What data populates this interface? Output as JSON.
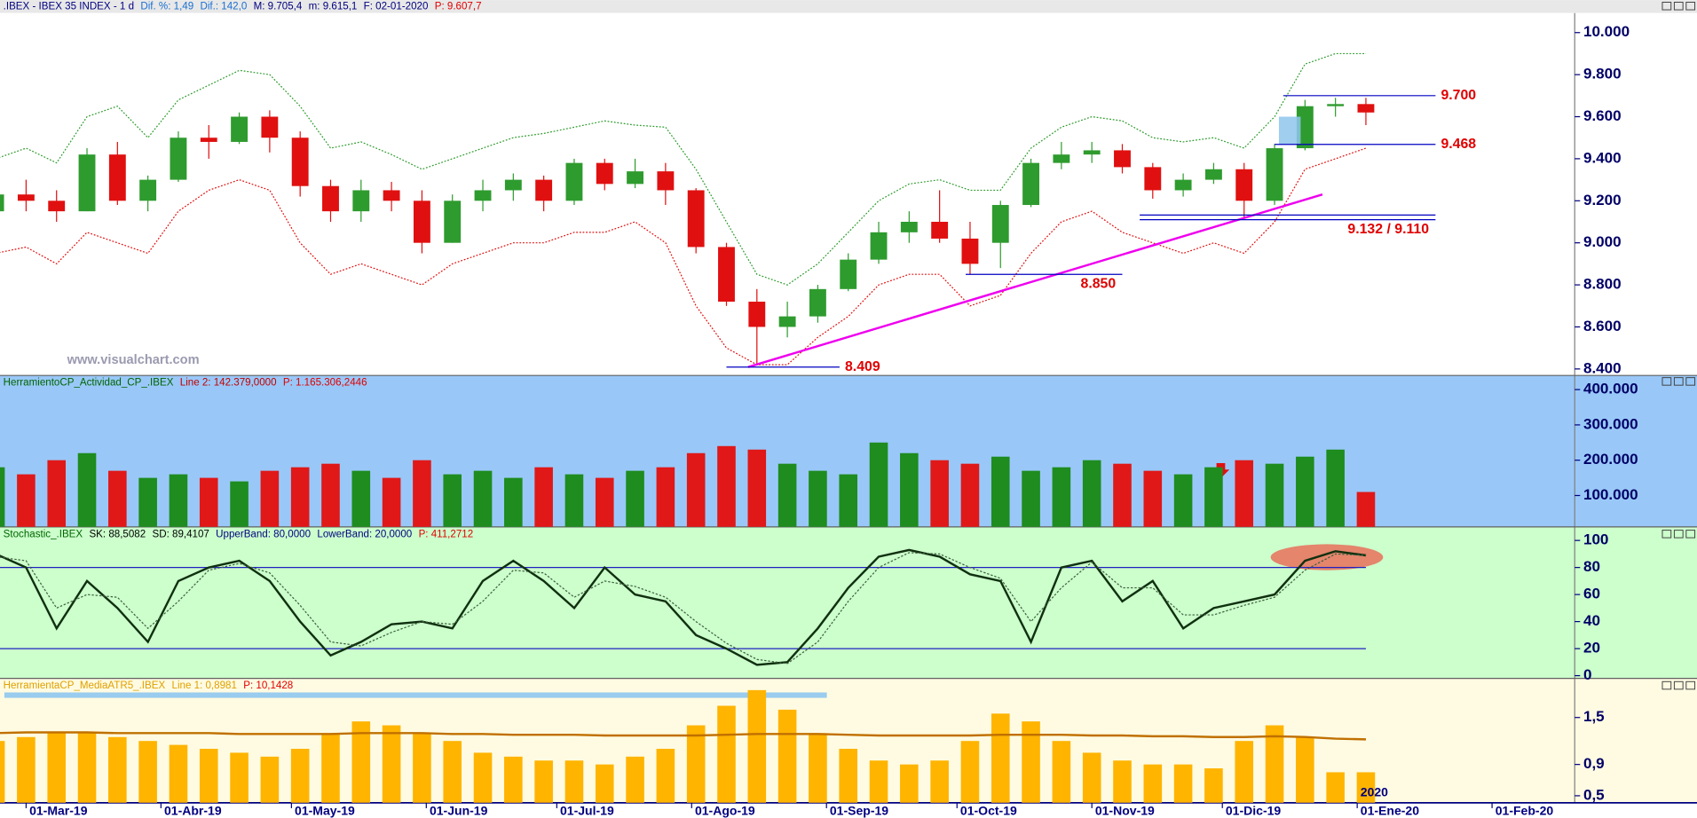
{
  "chart_data": [
    {
      "type": "candlestick",
      "header": [
        {
          "text": ".IBEX - IBEX 35 INDEX - 1 d",
          "color": "#000080"
        },
        {
          "text": "Dif. %: 1,49",
          "color": "#1a6fd0"
        },
        {
          "text": "Dif.: 142,0",
          "color": "#1a6fd0"
        },
        {
          "text": "M: 9.705,4",
          "color": "#000080"
        },
        {
          "text": "m: 9.615,1",
          "color": "#000080"
        },
        {
          "text": "F: 02-01-2020",
          "color": "#000080"
        },
        {
          "text": "P: 9.607,7",
          "color": "#e00000"
        }
      ],
      "watermark": "www.visualchart.com",
      "x": [
        "2019-02-22",
        "2019-03-01",
        "2019-03-08",
        "2019-03-15",
        "2019-03-22",
        "2019-03-29",
        "2019-04-05",
        "2019-04-12",
        "2019-04-19",
        "2019-04-26",
        "2019-05-03",
        "2019-05-10",
        "2019-05-17",
        "2019-05-24",
        "2019-05-31",
        "2019-06-07",
        "2019-06-14",
        "2019-06-21",
        "2019-06-28",
        "2019-07-05",
        "2019-07-12",
        "2019-07-19",
        "2019-07-26",
        "2019-08-02",
        "2019-08-09",
        "2019-08-16",
        "2019-08-23",
        "2019-08-30",
        "2019-09-06",
        "2019-09-13",
        "2019-09-20",
        "2019-09-27",
        "2019-10-04",
        "2019-10-11",
        "2019-10-18",
        "2019-10-25",
        "2019-11-01",
        "2019-11-08",
        "2019-11-15",
        "2019-11-22",
        "2019-11-29",
        "2019-12-06",
        "2019-12-13",
        "2019-12-20",
        "2019-12-27",
        "2020-01-03"
      ],
      "open": [
        9150,
        9230,
        9200,
        9150,
        9420,
        9200,
        9300,
        9500,
        9480,
        9600,
        9500,
        9270,
        9150,
        9250,
        9200,
        9000,
        9200,
        9250,
        9300,
        9200,
        9380,
        9280,
        9340,
        9250,
        8980,
        8720,
        8600,
        8650,
        8780,
        8920,
        9050,
        9100,
        9020,
        9000,
        9180,
        9380,
        9420,
        9440,
        9360,
        9250,
        9300,
        9350,
        9200,
        9450,
        9650,
        9660
      ],
      "high": [
        9250,
        9300,
        9250,
        9450,
        9480,
        9320,
        9530,
        9560,
        9620,
        9630,
        9530,
        9300,
        9300,
        9290,
        9250,
        9230,
        9300,
        9330,
        9320,
        9400,
        9400,
        9400,
        9380,
        9260,
        9000,
        8780,
        8720,
        8800,
        8950,
        9100,
        9150,
        9250,
        9100,
        9200,
        9400,
        9480,
        9480,
        9470,
        9380,
        9330,
        9380,
        9380,
        9470,
        9680,
        9690,
        9690
      ],
      "low": [
        9120,
        9150,
        9100,
        9150,
        9180,
        9150,
        9290,
        9400,
        9470,
        9430,
        9220,
        9100,
        9100,
        9150,
        8950,
        9000,
        9150,
        9200,
        9150,
        9180,
        9250,
        9260,
        9180,
        8950,
        8700,
        8420,
        8550,
        8620,
        8770,
        8900,
        9000,
        9000,
        8850,
        8880,
        9170,
        9350,
        9380,
        9330,
        9210,
        9220,
        9280,
        9120,
        9180,
        9440,
        9600,
        9560
      ],
      "close": [
        9230,
        9200,
        9150,
        9420,
        9200,
        9300,
        9500,
        9480,
        9600,
        9500,
        9270,
        9150,
        9250,
        9200,
        9000,
        9200,
        9250,
        9300,
        9200,
        9380,
        9280,
        9340,
        9250,
        8980,
        8720,
        8600,
        8650,
        8780,
        8920,
        9050,
        9100,
        9020,
        8900,
        9180,
        9380,
        9420,
        9440,
        9360,
        9250,
        9300,
        9350,
        9200,
        9450,
        9650,
        9660,
        9620
      ],
      "up_color": "#2e9b2e",
      "down_color": "#e01010",
      "upper_band": {
        "color": "#2e9b2e",
        "values": [
          9400,
          9450,
          9380,
          9600,
          9650,
          9500,
          9680,
          9750,
          9820,
          9800,
          9650,
          9450,
          9480,
          9420,
          9350,
          9400,
          9450,
          9500,
          9520,
          9550,
          9580,
          9560,
          9550,
          9350,
          9100,
          8850,
          8800,
          8900,
          9050,
          9200,
          9280,
          9300,
          9250,
          9250,
          9450,
          9550,
          9600,
          9580,
          9500,
          9480,
          9500,
          9450,
          9600,
          9850,
          9900,
          9900
        ]
      },
      "lower_band": {
        "color": "#e01010",
        "values": [
          8950,
          8980,
          8900,
          9050,
          9000,
          8950,
          9150,
          9250,
          9300,
          9250,
          9000,
          8850,
          8900,
          8850,
          8800,
          8900,
          8950,
          9000,
          9000,
          9050,
          9050,
          9100,
          9000,
          8700,
          8500,
          8420,
          8420,
          8550,
          8650,
          8800,
          8850,
          8850,
          8700,
          8750,
          8950,
          9100,
          9150,
          9050,
          9000,
          8950,
          9000,
          8950,
          9100,
          9350,
          9400,
          9450
        ]
      },
      "xlim": [
        "2019-02-23",
        "2020-02-20"
      ],
      "ylim": [
        8369,
        10093
      ],
      "yticks": [
        {
          "value": 8400,
          "label": "8.400"
        },
        {
          "value": 8600,
          "label": "8.600"
        },
        {
          "value": 8800,
          "label": "8.800"
        },
        {
          "value": 9000,
          "label": "9.000"
        },
        {
          "value": 9200,
          "label": "9.200"
        },
        {
          "value": 9400,
          "label": "9.400"
        },
        {
          "value": 9600,
          "label": "9.600"
        },
        {
          "value": 9800,
          "label": "9.800"
        },
        {
          "value": 10000,
          "label": "10.000"
        }
      ],
      "level_color": "#0000c0",
      "levels": [
        {
          "label": "9.700",
          "values": [
            9700
          ],
          "x": [
            "2019-12-15",
            "2020-01-19"
          ],
          "label_pos": "right"
        },
        {
          "label": "9.468",
          "values": [
            9468
          ],
          "x": [
            "2019-12-13",
            "2020-01-19"
          ],
          "label_pos": "right"
        },
        {
          "label": "9.132 / 9.110",
          "values": [
            9132,
            9110
          ],
          "x": [
            "2019-11-12",
            "2020-01-19"
          ],
          "label_pos": "below"
        },
        {
          "label": "8.850",
          "values": [
            8850
          ],
          "x": [
            "2019-10-03",
            "2019-11-08"
          ],
          "label_pos": "below"
        },
        {
          "label": "8.409",
          "values": [
            8409
          ],
          "x": [
            "2019-08-09",
            "2019-09-04"
          ],
          "label_pos": "right"
        }
      ],
      "trendline": {
        "color": "#ee00ee",
        "x": [
          "2019-08-14",
          "2019-12-24"
        ],
        "y": [
          8409,
          9230
        ]
      },
      "highlight": {
        "color": "#8ec6ec",
        "x": [
          "2019-12-14",
          "2019-12-19"
        ],
        "y": [
          9470,
          9600
        ]
      }
    },
    {
      "type": "bar",
      "header": [
        {
          "text": "HerramientoCP_Actividad_CP_.IBEX",
          "color": "#006400"
        },
        {
          "text": "Line 2: 142.379,0000",
          "color": "#c00000"
        },
        {
          "text": "P: 1.165.306,2446",
          "color": "#e00000"
        }
      ],
      "x": [
        "2019-02-22",
        "2019-03-01",
        "2019-03-08",
        "2019-03-15",
        "2019-03-22",
        "2019-03-29",
        "2019-04-05",
        "2019-04-12",
        "2019-04-19",
        "2019-04-26",
        "2019-05-03",
        "2019-05-10",
        "2019-05-17",
        "2019-05-24",
        "2019-05-31",
        "2019-06-07",
        "2019-06-14",
        "2019-06-21",
        "2019-06-28",
        "2019-07-05",
        "2019-07-12",
        "2019-07-19",
        "2019-07-26",
        "2019-08-02",
        "2019-08-09",
        "2019-08-16",
        "2019-08-23",
        "2019-08-30",
        "2019-09-06",
        "2019-09-13",
        "2019-09-20",
        "2019-09-27",
        "2019-10-04",
        "2019-10-11",
        "2019-10-18",
        "2019-10-25",
        "2019-11-01",
        "2019-11-08",
        "2019-11-15",
        "2019-11-22",
        "2019-11-29",
        "2019-12-06",
        "2019-12-13",
        "2019-12-20",
        "2019-12-27",
        "2020-01-03"
      ],
      "values": [
        180000,
        160000,
        200000,
        220000,
        170000,
        150000,
        160000,
        150000,
        140000,
        170000,
        180000,
        190000,
        170000,
        150000,
        200000,
        160000,
        170000,
        150000,
        180000,
        160000,
        150000,
        170000,
        180000,
        220000,
        240000,
        230000,
        190000,
        170000,
        160000,
        250000,
        220000,
        200000,
        190000,
        210000,
        170000,
        180000,
        200000,
        190000,
        170000,
        160000,
        180000,
        200000,
        190000,
        210000,
        230000,
        110000
      ],
      "up_color": "#1e8c1e",
      "down_color": "#e01818",
      "xlim": [
        "2019-02-23",
        "2020-02-20"
      ],
      "ylim": [
        11000,
        440000
      ],
      "yticks": [
        {
          "value": 100000,
          "label": "100.000"
        },
        {
          "value": 200000,
          "label": "200.000"
        },
        {
          "value": 300000,
          "label": "300.000"
        },
        {
          "value": 400000,
          "label": "400.000"
        }
      ]
    },
    {
      "type": "line",
      "header": [
        {
          "text": "Stochastic_.IBEX",
          "color": "#006400"
        },
        {
          "text": "SK: 88,5082",
          "color": "#000000"
        },
        {
          "text": "SD: 89,4107",
          "color": "#000000"
        },
        {
          "text": "UpperBand: 80,0000",
          "color": "#000080"
        },
        {
          "text": "LowerBand: 20,0000",
          "color": "#000080"
        },
        {
          "text": "P: 411,2712",
          "color": "#e00000"
        }
      ],
      "x": [
        "2019-02-22",
        "2019-03-01",
        "2019-03-08",
        "2019-03-15",
        "2019-03-22",
        "2019-03-29",
        "2019-04-05",
        "2019-04-12",
        "2019-04-19",
        "2019-04-26",
        "2019-05-03",
        "2019-05-10",
        "2019-05-17",
        "2019-05-24",
        "2019-05-31",
        "2019-06-07",
        "2019-06-14",
        "2019-06-21",
        "2019-06-28",
        "2019-07-05",
        "2019-07-12",
        "2019-07-19",
        "2019-07-26",
        "2019-08-02",
        "2019-08-09",
        "2019-08-16",
        "2019-08-23",
        "2019-08-30",
        "2019-09-06",
        "2019-09-13",
        "2019-09-20",
        "2019-09-27",
        "2019-10-04",
        "2019-10-11",
        "2019-10-18",
        "2019-10-25",
        "2019-11-01",
        "2019-11-08",
        "2019-11-15",
        "2019-11-22",
        "2019-11-29",
        "2019-12-06",
        "2019-12-13",
        "2019-12-20",
        "2019-12-27",
        "2020-01-03"
      ],
      "series": [
        {
          "color": "#103010",
          "width": 2,
          "values": [
            90,
            80,
            35,
            70,
            50,
            25,
            70,
            80,
            85,
            70,
            40,
            15,
            25,
            38,
            40,
            35,
            70,
            85,
            70,
            50,
            80,
            60,
            55,
            30,
            20,
            8,
            10,
            35,
            65,
            88,
            93,
            88,
            75,
            70,
            25,
            80,
            85,
            55,
            70,
            35,
            50,
            55,
            60,
            85,
            92,
            89
          ]
        },
        {
          "color": "#406040",
          "width": 1,
          "dashed": true,
          "values": [
            88,
            85,
            50,
            60,
            58,
            35,
            55,
            78,
            83,
            76,
            52,
            25,
            22,
            32,
            40,
            38,
            55,
            78,
            76,
            58,
            70,
            66,
            58,
            40,
            24,
            12,
            9,
            25,
            55,
            80,
            91,
            90,
            80,
            72,
            40,
            65,
            84,
            65,
            65,
            45,
            45,
            52,
            58,
            78,
            90,
            89
          ]
        }
      ],
      "bands": [
        80,
        20
      ],
      "band_color": "#2020c0",
      "xlim": [
        "2019-02-23",
        "2020-02-20"
      ],
      "ylim": [
        -2,
        110
      ],
      "yticks": [
        0,
        20,
        40,
        60,
        80,
        100
      ]
    },
    {
      "type": "bar",
      "header": [
        {
          "text": "HerramientaCP_MediaATR5_.IBEX",
          "color": "#e0a000"
        },
        {
          "text": "Line 1: 0,8981",
          "color": "#e0a000"
        },
        {
          "text": "P: 10,1428",
          "color": "#e00000"
        }
      ],
      "x": [
        "2019-02-22",
        "2019-03-01",
        "2019-03-08",
        "2019-03-15",
        "2019-03-22",
        "2019-03-29",
        "2019-04-05",
        "2019-04-12",
        "2019-04-19",
        "2019-04-26",
        "2019-05-03",
        "2019-05-10",
        "2019-05-17",
        "2019-05-24",
        "2019-05-31",
        "2019-06-07",
        "2019-06-14",
        "2019-06-21",
        "2019-06-28",
        "2019-07-05",
        "2019-07-12",
        "2019-07-19",
        "2019-07-26",
        "2019-08-02",
        "2019-08-09",
        "2019-08-16",
        "2019-08-23",
        "2019-08-30",
        "2019-09-06",
        "2019-09-13",
        "2019-09-20",
        "2019-09-27",
        "2019-10-04",
        "2019-10-11",
        "2019-10-18",
        "2019-10-25",
        "2019-11-01",
        "2019-11-08",
        "2019-11-15",
        "2019-11-22",
        "2019-11-29",
        "2019-12-06",
        "2019-12-13",
        "2019-12-20",
        "2019-12-27",
        "2020-01-03"
      ],
      "values": [
        1.2,
        1.25,
        1.3,
        1.3,
        1.25,
        1.2,
        1.15,
        1.1,
        1.05,
        1.0,
        1.1,
        1.3,
        1.45,
        1.4,
        1.3,
        1.2,
        1.05,
        1.0,
        0.95,
        0.95,
        0.9,
        1.0,
        1.1,
        1.4,
        1.65,
        1.85,
        1.6,
        1.3,
        1.1,
        0.95,
        0.9,
        0.95,
        1.2,
        1.55,
        1.45,
        1.2,
        1.05,
        0.95,
        0.9,
        0.9,
        0.85,
        1.2,
        1.4,
        1.25,
        0.8,
        0.8
      ],
      "color": "#ffb400",
      "series": [
        {
          "color": "#c07000",
          "width": 2,
          "values": [
            1.3,
            1.31,
            1.31,
            1.31,
            1.3,
            1.3,
            1.3,
            1.3,
            1.29,
            1.29,
            1.29,
            1.29,
            1.3,
            1.3,
            1.3,
            1.29,
            1.29,
            1.28,
            1.28,
            1.28,
            1.27,
            1.27,
            1.27,
            1.27,
            1.28,
            1.29,
            1.29,
            1.29,
            1.28,
            1.27,
            1.27,
            1.27,
            1.27,
            1.28,
            1.28,
            1.28,
            1.27,
            1.27,
            1.26,
            1.26,
            1.25,
            1.25,
            1.26,
            1.25,
            1.23,
            1.22
          ]
        }
      ],
      "xlim": [
        "2019-02-23",
        "2020-02-20"
      ],
      "ylim": [
        0.41,
        2.0
      ],
      "yticks": [
        {
          "value": 0.5,
          "label": "0,5"
        },
        {
          "value": 0.9,
          "label": "0,9"
        },
        {
          "value": 1.5,
          "label": "1,5"
        }
      ],
      "year_label": {
        "x": "2020-01-01",
        "text": "2020"
      },
      "xticks": [
        {
          "value": "2019-03-01",
          "label": "01-Mar-19"
        },
        {
          "value": "2019-04-01",
          "label": "01-Abr-19"
        },
        {
          "value": "2019-05-01",
          "label": "01-May-19"
        },
        {
          "value": "2019-06-01",
          "label": "01-Jun-19"
        },
        {
          "value": "2019-07-01",
          "label": "01-Jul-19"
        },
        {
          "value": "2019-08-01",
          "label": "01-Ago-19"
        },
        {
          "value": "2019-09-01",
          "label": "01-Sep-19"
        },
        {
          "value": "2019-10-01",
          "label": "01-Oct-19"
        },
        {
          "value": "2019-11-01",
          "label": "01-Nov-19"
        },
        {
          "value": "2019-12-01",
          "label": "01-Dic-19"
        },
        {
          "value": "2020-01-01",
          "label": "01-Ene-20"
        },
        {
          "value": "2020-02-01",
          "label": "01-Feb-20"
        }
      ]
    }
  ]
}
